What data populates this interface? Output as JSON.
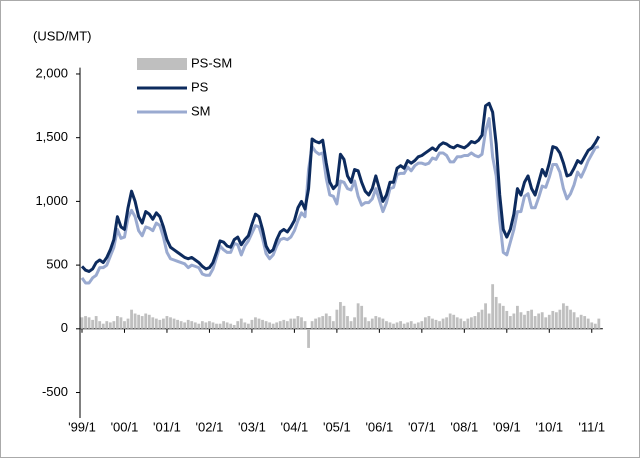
{
  "chart_data": {
    "type": "combo",
    "y_label": "(USD/MT)",
    "categories": [
      "'99/1",
      null,
      null,
      null,
      null,
      null,
      null,
      null,
      null,
      null,
      null,
      null,
      "'00/1",
      null,
      null,
      null,
      null,
      null,
      null,
      null,
      null,
      null,
      null,
      null,
      "'01/1",
      null,
      null,
      null,
      null,
      null,
      null,
      null,
      null,
      null,
      null,
      null,
      "'02/1",
      null,
      null,
      null,
      null,
      null,
      null,
      null,
      null,
      null,
      null,
      null,
      "'03/1",
      null,
      null,
      null,
      null,
      null,
      null,
      null,
      null,
      null,
      null,
      null,
      "'04/1",
      null,
      null,
      null,
      null,
      null,
      null,
      null,
      null,
      null,
      null,
      null,
      "'05/1",
      null,
      null,
      null,
      null,
      null,
      null,
      null,
      null,
      null,
      null,
      null,
      "'06/1",
      null,
      null,
      null,
      null,
      null,
      null,
      null,
      null,
      null,
      null,
      null,
      "'07/1",
      null,
      null,
      null,
      null,
      null,
      null,
      null,
      null,
      null,
      null,
      null,
      "'08/1",
      null,
      null,
      null,
      null,
      null,
      null,
      null,
      null,
      null,
      null,
      null,
      "'09/1",
      null,
      null,
      null,
      null,
      null,
      null,
      null,
      null,
      null,
      null,
      null,
      "'10/1",
      null,
      null,
      null,
      null,
      null,
      null,
      null,
      null,
      null,
      null,
      null,
      "'11/1",
      null,
      null
    ],
    "series": [
      {
        "name": "PS-SM",
        "type": "bar",
        "color": "#bfbfbf",
        "values": [
          90,
          100,
          90,
          70,
          100,
          60,
          40,
          60,
          50,
          60,
          100,
          90,
          60,
          80,
          150,
          120,
          110,
          100,
          120,
          110,
          90,
          80,
          70,
          80,
          100,
          90,
          80,
          70,
          60,
          50,
          70,
          60,
          50,
          40,
          60,
          50,
          60,
          50,
          40,
          40,
          60,
          50,
          40,
          30,
          60,
          80,
          50,
          40,
          70,
          90,
          80,
          70,
          60,
          50,
          40,
          50,
          60,
          70,
          60,
          80,
          80,
          100,
          90,
          60,
          -150,
          60,
          80,
          90,
          100,
          120,
          100,
          60,
          150,
          210,
          180,
          100,
          60,
          90,
          200,
          180,
          90,
          60,
          80,
          100,
          90,
          80,
          60,
          50,
          40,
          50,
          60,
          40,
          50,
          60,
          40,
          50,
          60,
          90,
          100,
          80,
          70,
          60,
          80,
          90,
          120,
          110,
          90,
          80,
          60,
          80,
          90,
          100,
          130,
          150,
          200,
          120,
          350,
          250,
          200,
          180,
          140,
          100,
          120,
          180,
          130,
          110,
          140,
          150,
          100,
          120,
          130,
          90,
          110,
          140,
          130,
          150,
          200,
          180,
          150,
          130,
          90,
          110,
          100,
          80,
          50,
          40,
          80
        ]
      },
      {
        "name": "PS",
        "type": "line",
        "color": "#0d2b5e",
        "values": [
          490,
          460,
          450,
          470,
          520,
          540,
          520,
          560,
          620,
          700,
          880,
          800,
          780,
          950,
          1080,
          1000,
          880,
          830,
          920,
          900,
          860,
          910,
          880,
          800,
          700,
          640,
          620,
          600,
          580,
          560,
          550,
          560,
          540,
          520,
          490,
          470,
          480,
          520,
          600,
          690,
          680,
          650,
          640,
          700,
          720,
          660,
          700,
          730,
          820,
          900,
          880,
          780,
          650,
          600,
          620,
          700,
          760,
          780,
          760,
          800,
          850,
          950,
          1000,
          940,
          1100,
          1490,
          1470,
          1460,
          1480,
          1300,
          1150,
          1100,
          1130,
          1370,
          1330,
          1200,
          1150,
          1250,
          1240,
          1150,
          1080,
          1050,
          1100,
          1200,
          1100,
          1000,
          1050,
          1150,
          1150,
          1260,
          1280,
          1260,
          1320,
          1300,
          1320,
          1350,
          1360,
          1380,
          1400,
          1420,
          1400,
          1440,
          1460,
          1450,
          1430,
          1420,
          1440,
          1430,
          1420,
          1440,
          1470,
          1460,
          1480,
          1520,
          1750,
          1770,
          1700,
          1450,
          1050,
          780,
          720,
          780,
          900,
          1100,
          1050,
          1150,
          1200,
          1100,
          1050,
          1150,
          1250,
          1200,
          1300,
          1430,
          1420,
          1380,
          1300,
          1200,
          1210,
          1260,
          1320,
          1300,
          1350,
          1400,
          1420,
          1460,
          1510
        ]
      },
      {
        "name": "SM",
        "type": "line",
        "color": "#9aaad0",
        "values": [
          400,
          360,
          360,
          400,
          420,
          480,
          480,
          500,
          570,
          640,
          780,
          710,
          720,
          870,
          930,
          880,
          770,
          730,
          800,
          790,
          770,
          830,
          810,
          720,
          600,
          550,
          540,
          530,
          520,
          510,
          480,
          500,
          490,
          480,
          430,
          420,
          420,
          470,
          560,
          650,
          620,
          600,
          600,
          670,
          660,
          580,
          650,
          690,
          750,
          810,
          800,
          710,
          590,
          550,
          580,
          650,
          700,
          710,
          700,
          720,
          770,
          850,
          910,
          880,
          1250,
          1430,
          1390,
          1370,
          1380,
          1180,
          1050,
          1040,
          980,
          1160,
          1150,
          1100,
          1090,
          1160,
          1040,
          970,
          990,
          990,
          1020,
          1100,
          1010,
          920,
          990,
          1100,
          1110,
          1210,
          1220,
          1220,
          1270,
          1240,
          1280,
          1300,
          1300,
          1290,
          1300,
          1340,
          1330,
          1380,
          1380,
          1360,
          1310,
          1310,
          1350,
          1350,
          1360,
          1360,
          1380,
          1360,
          1350,
          1370,
          1550,
          1650,
          1350,
          1200,
          850,
          600,
          580,
          680,
          780,
          920,
          920,
          1040,
          1060,
          950,
          950,
          1030,
          1120,
          1110,
          1190,
          1290,
          1290,
          1230,
          1100,
          1020,
          1060,
          1130,
          1230,
          1190,
          1250,
          1320,
          1370,
          1420,
          1430
        ]
      }
    ],
    "ylim": [
      -700,
      2050
    ],
    "yticks": [
      -500,
      0,
      500,
      {
        "value": 1000,
        "label": "1,000"
      },
      {
        "value": 1500,
        "label": "1,500"
      },
      {
        "value": 2000,
        "label": "2,000"
      }
    ],
    "legend": "upper left"
  }
}
